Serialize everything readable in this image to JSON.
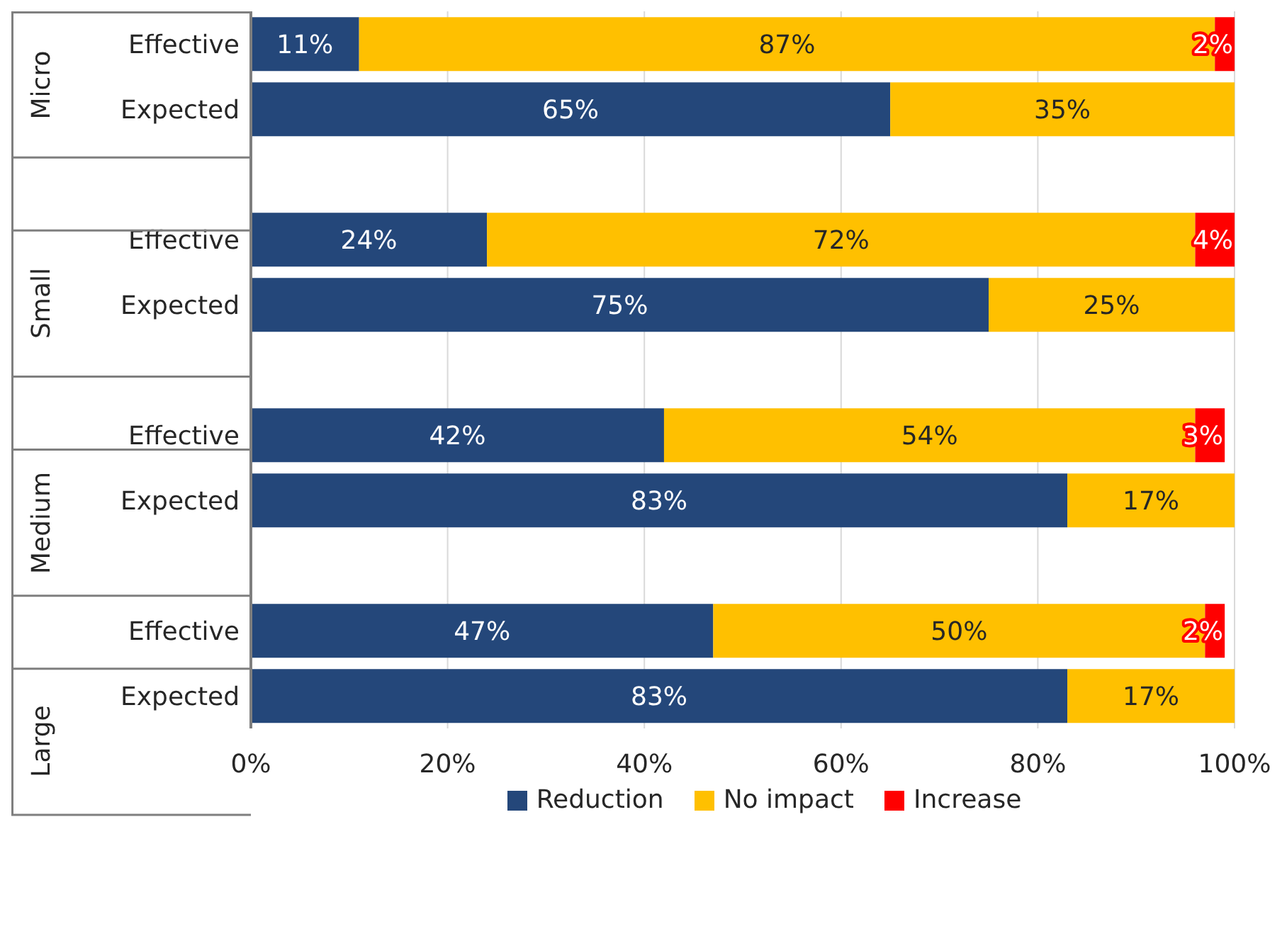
{
  "chart_data": {
    "type": "bar",
    "orientation": "horizontal",
    "stacked": true,
    "categories": [
      "Effective",
      "Expected",
      null,
      "Effective",
      "Expected",
      null,
      "Effective",
      "Expected",
      null,
      "Effective",
      "Expected"
    ],
    "series": [
      {
        "name": "Reduction",
        "color": "#24477a",
        "values": [
          11,
          65,
          null,
          24,
          75,
          null,
          42,
          83,
          null,
          47,
          83
        ],
        "value_labels": [
          "11%",
          "65%",
          null,
          "24%",
          "75%",
          null,
          "42%",
          "83%",
          null,
          "47%",
          "83%"
        ]
      },
      {
        "name": "No impact",
        "color": "#ffc000",
        "values": [
          87,
          35,
          null,
          72,
          25,
          null,
          54,
          17,
          null,
          50,
          17
        ],
        "value_labels": [
          "87%",
          "35%",
          null,
          "72%",
          "25%",
          null,
          "54%",
          "17%",
          null,
          "50%",
          "17%"
        ]
      },
      {
        "name": "Increase",
        "color": "#ff0000",
        "values": [
          2,
          null,
          null,
          4,
          null,
          null,
          3,
          null,
          null,
          2,
          null
        ],
        "value_labels": [
          "2%",
          null,
          null,
          "4%",
          null,
          null,
          "3%",
          null,
          null,
          "2%",
          null
        ]
      }
    ],
    "xlim": [
      0,
      100
    ],
    "xticks": [
      {
        "value": 0,
        "label": "0%"
      },
      {
        "value": 20,
        "label": "20%"
      },
      {
        "value": 40,
        "label": "40%"
      },
      {
        "value": 60,
        "label": "60%"
      },
      {
        "value": 80,
        "label": "80%"
      },
      {
        "value": 100,
        "label": "100%"
      }
    ],
    "annotations": [
      "Micro",
      "Small",
      "Medium",
      "Large"
    ],
    "grid": "x",
    "legend": "bottom"
  }
}
